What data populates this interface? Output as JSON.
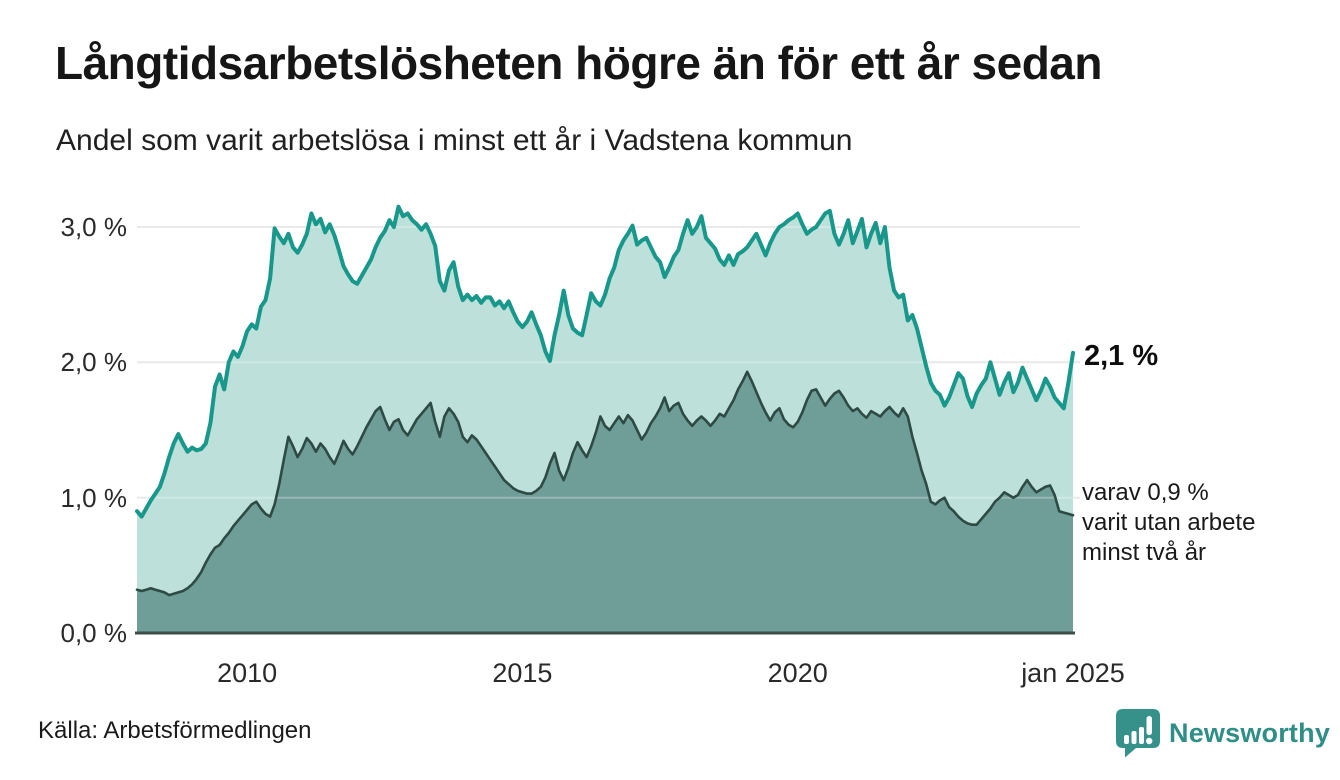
{
  "title": "Långtidsarbetslösheten högre än för ett år sedan",
  "subtitle": "Andel som varit arbetslösa i minst ett år i Vadstena kommun",
  "annotations": {
    "end_value": "2,1 %",
    "sub_lines": [
      "varav 0,9 %",
      "varit utan arbete",
      "minst två år"
    ]
  },
  "source": "Källa: Arbetsförmedlingen",
  "logo": {
    "text": "Newsworthy"
  },
  "colors": {
    "line_primary": "#18978b",
    "fill_primary": "#bde0da",
    "line_secondary": "#2e4a44",
    "fill_secondary": "#6f9d97",
    "axis": "#3e4d49",
    "gridline": "#e2e2e2",
    "logo_teal": "#35918a"
  },
  "chart_data": {
    "type": "area",
    "title": "Långtidsarbetslösheten högre än för ett år sedan",
    "subtitle": "Andel som varit arbetslösa i minst ett år i Vadstena kommun",
    "unit": "%",
    "x_start": "jan 2008",
    "x_end": "jan 2025",
    "points_per_year": 12,
    "x_ticks": [
      "2010",
      "2015",
      "2020",
      "jan 2025"
    ],
    "x_tick_indices": [
      24,
      84,
      144,
      204
    ],
    "y_ticks": [
      "3,0 %",
      "2,0 %",
      "1,0 %",
      "0,0 %"
    ],
    "y_tick_values": [
      3.0,
      2.0,
      1.0,
      0.0
    ],
    "ylim": [
      0,
      3.2
    ],
    "grid": true,
    "legend": "none",
    "series": [
      {
        "name": "Andel arbetslösa minst ett år",
        "end_label": "2,1 %",
        "color": "#18978b",
        "fill": "#bde0da",
        "values": [
          0.9,
          0.86,
          0.92,
          0.98,
          1.03,
          1.08,
          1.18,
          1.3,
          1.4,
          1.47,
          1.4,
          1.34,
          1.37,
          1.35,
          1.36,
          1.4,
          1.55,
          1.82,
          1.91,
          1.8,
          2.0,
          2.08,
          2.04,
          2.12,
          2.23,
          2.28,
          2.25,
          2.41,
          2.46,
          2.62,
          2.99,
          2.93,
          2.88,
          2.95,
          2.85,
          2.81,
          2.87,
          2.95,
          3.1,
          3.02,
          3.06,
          2.96,
          3.02,
          2.94,
          2.83,
          2.71,
          2.65,
          2.6,
          2.58,
          2.64,
          2.7,
          2.76,
          2.85,
          2.92,
          2.97,
          3.05,
          3.0,
          3.15,
          3.08,
          3.1,
          3.05,
          3.02,
          2.98,
          3.02,
          2.95,
          2.86,
          2.6,
          2.53,
          2.68,
          2.74,
          2.56,
          2.46,
          2.5,
          2.46,
          2.49,
          2.44,
          2.48,
          2.48,
          2.42,
          2.45,
          2.4,
          2.45,
          2.37,
          2.3,
          2.26,
          2.3,
          2.37,
          2.28,
          2.2,
          2.08,
          2.01,
          2.2,
          2.35,
          2.53,
          2.35,
          2.25,
          2.22,
          2.2,
          2.35,
          2.51,
          2.45,
          2.42,
          2.5,
          2.62,
          2.7,
          2.83,
          2.9,
          2.95,
          3.01,
          2.87,
          2.9,
          2.92,
          2.85,
          2.78,
          2.74,
          2.63,
          2.7,
          2.78,
          2.83,
          2.95,
          3.05,
          2.95,
          3.0,
          3.08,
          2.92,
          2.88,
          2.84,
          2.76,
          2.72,
          2.79,
          2.72,
          2.8,
          2.82,
          2.85,
          2.9,
          2.95,
          2.87,
          2.79,
          2.88,
          2.95,
          3.0,
          3.02,
          3.05,
          3.07,
          3.1,
          3.02,
          2.95,
          2.98,
          3.0,
          3.05,
          3.1,
          3.12,
          2.95,
          2.87,
          2.95,
          3.05,
          2.88,
          2.97,
          3.06,
          2.85,
          2.95,
          3.03,
          2.88,
          3.0,
          2.7,
          2.53,
          2.48,
          2.5,
          2.31,
          2.35,
          2.25,
          2.11,
          1.97,
          1.85,
          1.79,
          1.76,
          1.68,
          1.74,
          1.83,
          1.92,
          1.88,
          1.75,
          1.67,
          1.77,
          1.83,
          1.88,
          2.0,
          1.88,
          1.76,
          1.85,
          1.92,
          1.78,
          1.85,
          1.96,
          1.88,
          1.8,
          1.72,
          1.79,
          1.88,
          1.82,
          1.74,
          1.7,
          1.66,
          1.85,
          2.07
        ]
      },
      {
        "name": "varav utan arbete minst två år",
        "end_label": "0,9 %",
        "color": "#2e4a44",
        "fill": "#6f9d97",
        "values": [
          0.32,
          0.31,
          0.32,
          0.33,
          0.32,
          0.31,
          0.3,
          0.28,
          0.29,
          0.3,
          0.31,
          0.33,
          0.36,
          0.4,
          0.45,
          0.52,
          0.58,
          0.63,
          0.65,
          0.7,
          0.74,
          0.79,
          0.83,
          0.87,
          0.91,
          0.95,
          0.97,
          0.92,
          0.88,
          0.86,
          0.95,
          1.1,
          1.28,
          1.45,
          1.38,
          1.3,
          1.36,
          1.44,
          1.4,
          1.34,
          1.4,
          1.36,
          1.3,
          1.25,
          1.33,
          1.42,
          1.36,
          1.32,
          1.38,
          1.45,
          1.52,
          1.58,
          1.64,
          1.67,
          1.58,
          1.5,
          1.56,
          1.58,
          1.5,
          1.46,
          1.52,
          1.58,
          1.62,
          1.66,
          1.7,
          1.56,
          1.45,
          1.6,
          1.66,
          1.62,
          1.56,
          1.45,
          1.41,
          1.46,
          1.43,
          1.38,
          1.33,
          1.28,
          1.23,
          1.18,
          1.13,
          1.1,
          1.07,
          1.05,
          1.04,
          1.03,
          1.03,
          1.05,
          1.08,
          1.15,
          1.25,
          1.33,
          1.2,
          1.13,
          1.22,
          1.33,
          1.41,
          1.35,
          1.3,
          1.38,
          1.48,
          1.6,
          1.53,
          1.5,
          1.55,
          1.6,
          1.55,
          1.61,
          1.57,
          1.5,
          1.43,
          1.48,
          1.55,
          1.6,
          1.66,
          1.74,
          1.64,
          1.68,
          1.7,
          1.62,
          1.57,
          1.53,
          1.57,
          1.6,
          1.57,
          1.53,
          1.57,
          1.62,
          1.6,
          1.66,
          1.72,
          1.8,
          1.86,
          1.93,
          1.86,
          1.78,
          1.7,
          1.63,
          1.57,
          1.63,
          1.66,
          1.58,
          1.54,
          1.52,
          1.56,
          1.63,
          1.72,
          1.79,
          1.8,
          1.74,
          1.68,
          1.73,
          1.77,
          1.79,
          1.74,
          1.68,
          1.64,
          1.66,
          1.62,
          1.59,
          1.64,
          1.62,
          1.6,
          1.64,
          1.67,
          1.63,
          1.6,
          1.66,
          1.6,
          1.45,
          1.33,
          1.2,
          1.1,
          0.97,
          0.95,
          0.98,
          1.0,
          0.93,
          0.9,
          0.86,
          0.83,
          0.81,
          0.8,
          0.8,
          0.84,
          0.88,
          0.92,
          0.97,
          1.0,
          1.04,
          1.02,
          1.0,
          1.02,
          1.08,
          1.13,
          1.08,
          1.04,
          1.06,
          1.08,
          1.09,
          1.02,
          0.9,
          0.89,
          0.88,
          0.87
        ]
      }
    ]
  }
}
